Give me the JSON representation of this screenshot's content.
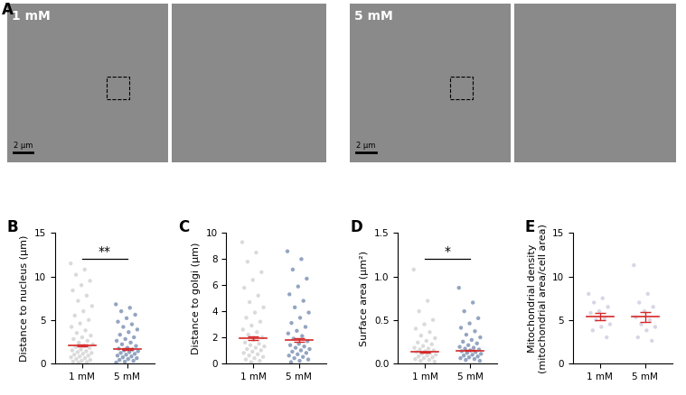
{
  "images": {
    "panel": "A",
    "conditions": [
      "1 mM",
      "5 mM"
    ],
    "scale_bar": "2 µm"
  },
  "chart_data": [
    {
      "type": "scatter",
      "panel": "B",
      "y_label": "Distance to nucleus (µm)",
      "categories": [
        "1 mM",
        "5 mM"
      ],
      "colors": [
        "#bdbdbd",
        "#3b5b8f"
      ],
      "points": [
        [
          11.5,
          10.8,
          10.2,
          9.5,
          9.0,
          8.4,
          7.8,
          7.2,
          6.6,
          6.0,
          5.5,
          5.0,
          4.6,
          4.2,
          3.8,
          3.5,
          3.2,
          3.0,
          2.8,
          2.6,
          2.4,
          2.2,
          2.0,
          1.9,
          1.8,
          1.6,
          1.5,
          1.4,
          1.3,
          1.2,
          1.1,
          1.0,
          0.9,
          0.8,
          0.7,
          0.6,
          0.5,
          0.4,
          0.3,
          0.2,
          0.15,
          0.1
        ],
        [
          6.8,
          6.4,
          6.0,
          5.6,
          5.2,
          4.8,
          4.5,
          4.2,
          3.9,
          3.6,
          3.3,
          3.0,
          2.8,
          2.6,
          2.4,
          2.2,
          2.0,
          1.8,
          1.7,
          1.6,
          1.5,
          1.4,
          1.3,
          1.2,
          1.1,
          1.0,
          0.9,
          0.8,
          0.7,
          0.6,
          0.5,
          0.4,
          0.3,
          0.2,
          0.1
        ]
      ],
      "mean": [
        2.1,
        1.65
      ],
      "error": [
        0.1,
        0.08
      ],
      "significance": "**",
      "ylim": [
        0,
        15
      ],
      "yticks": [
        0,
        5,
        10,
        15
      ]
    },
    {
      "type": "scatter",
      "panel": "C",
      "y_label": "Distance to golgi (µm)",
      "categories": [
        "1 mM",
        "5 mM"
      ],
      "colors": [
        "#bdbdbd",
        "#3b5b8f"
      ],
      "points": [
        [
          9.3,
          8.5,
          7.8,
          7.0,
          6.4,
          5.8,
          5.2,
          4.7,
          4.3,
          3.9,
          3.5,
          3.2,
          2.9,
          2.6,
          2.4,
          2.2,
          2.0,
          1.8,
          1.6,
          1.5,
          1.4,
          1.3,
          1.2,
          1.1,
          1.0,
          0.9,
          0.8,
          0.7,
          0.6,
          0.5,
          0.4,
          0.3,
          0.2,
          0.1
        ],
        [
          8.6,
          8.0,
          7.2,
          6.5,
          5.9,
          5.3,
          4.8,
          4.3,
          3.9,
          3.5,
          3.1,
          2.8,
          2.5,
          2.3,
          2.1,
          1.9,
          1.7,
          1.5,
          1.4,
          1.3,
          1.2,
          1.1,
          1.0,
          0.9,
          0.8,
          0.7,
          0.6,
          0.5,
          0.4,
          0.3,
          0.2,
          0.1
        ]
      ],
      "mean": [
        1.95,
        1.8
      ],
      "error": [
        0.12,
        0.11
      ],
      "ylim": [
        0,
        10
      ],
      "yticks": [
        0,
        2,
        4,
        6,
        8,
        10
      ]
    },
    {
      "type": "scatter",
      "panel": "D",
      "y_label": "Surface area (µm²)",
      "categories": [
        "1 mM",
        "5 mM"
      ],
      "colors": [
        "#bdbdbd",
        "#3b5b8f"
      ],
      "points": [
        [
          1.08,
          0.72,
          0.6,
          0.5,
          0.45,
          0.4,
          0.36,
          0.32,
          0.29,
          0.26,
          0.24,
          0.22,
          0.2,
          0.18,
          0.17,
          0.16,
          0.15,
          0.14,
          0.13,
          0.12,
          0.11,
          0.1,
          0.09,
          0.08,
          0.07,
          0.06,
          0.05,
          0.04,
          0.03,
          0.02
        ],
        [
          0.87,
          0.7,
          0.6,
          0.52,
          0.46,
          0.41,
          0.37,
          0.33,
          0.3,
          0.27,
          0.25,
          0.23,
          0.21,
          0.19,
          0.18,
          0.17,
          0.16,
          0.15,
          0.14,
          0.13,
          0.12,
          0.11,
          0.1,
          0.09,
          0.08,
          0.07,
          0.06,
          0.05,
          0.04,
          0.03
        ]
      ],
      "mean": [
        0.13,
        0.15
      ],
      "error": [
        0.006,
        0.006
      ],
      "significance": "*",
      "ylim": [
        0.0,
        1.5
      ],
      "yticks": [
        0.0,
        0.5,
        1.0,
        1.5
      ]
    },
    {
      "type": "scatter",
      "panel": "E",
      "y_label": "Mitochondrial density\n(mitochondrial area/cell area)",
      "categories": [
        "1 mM",
        "5 mM"
      ],
      "colors": [
        "#bab4d2",
        "#bab4d2"
      ],
      "points": [
        [
          8.0,
          7.5,
          7.0,
          6.5,
          6.0,
          5.8,
          5.2,
          5.0,
          4.5,
          4.2,
          3.8,
          3.0
        ],
        [
          11.3,
          8.0,
          7.0,
          6.5,
          6.0,
          5.3,
          5.0,
          4.5,
          4.2,
          3.8,
          3.0,
          2.6
        ]
      ],
      "mean": [
        5.4,
        5.35
      ],
      "error": [
        0.4,
        0.6
      ],
      "ylim": [
        0,
        15
      ],
      "yticks": [
        0,
        5,
        10,
        15
      ]
    }
  ]
}
